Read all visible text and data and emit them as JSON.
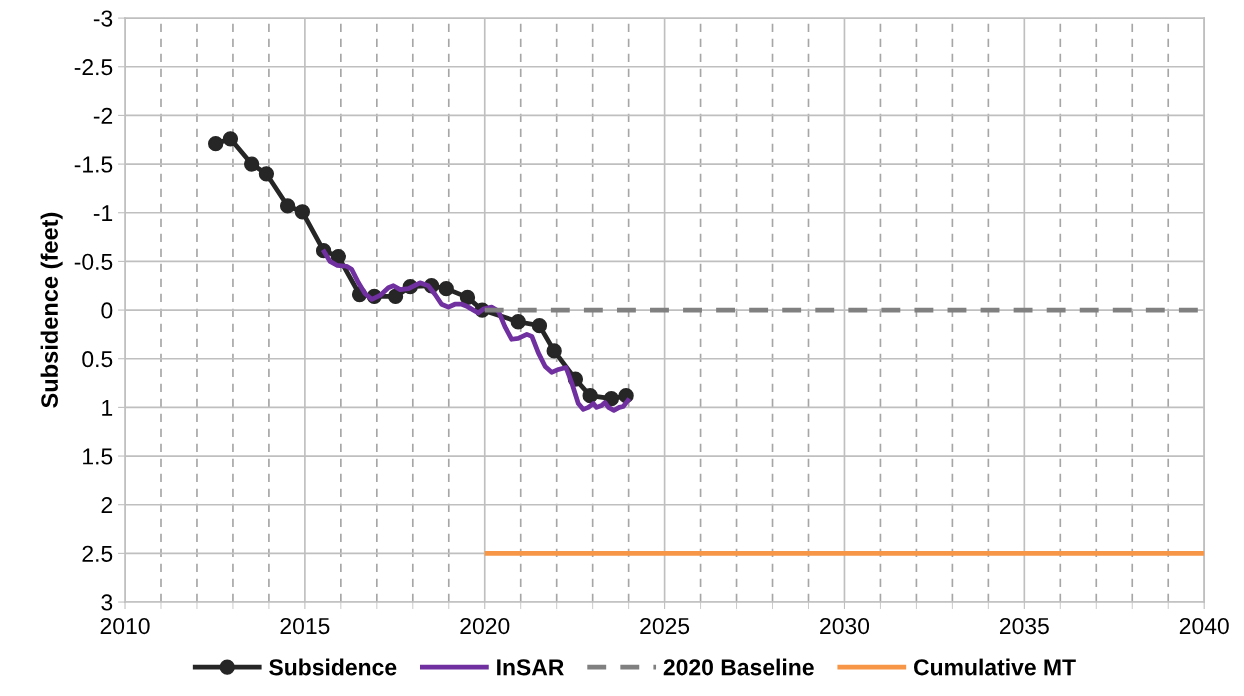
{
  "chart_data": {
    "type": "line",
    "ylabel": "Subsidence (feet)",
    "xlim": [
      2010,
      2040
    ],
    "xticks": [
      2010,
      {
        "value": 2011,
        "label": null
      },
      {
        "value": 2012,
        "label": null
      },
      {
        "value": 2013,
        "label": null
      },
      {
        "value": 2014,
        "label": null
      },
      2015,
      {
        "value": 2016,
        "label": null
      },
      {
        "value": 2017,
        "label": null
      },
      {
        "value": 2018,
        "label": null
      },
      {
        "value": 2019,
        "label": null
      },
      2020,
      {
        "value": 2021,
        "label": null
      },
      {
        "value": 2022,
        "label": null
      },
      {
        "value": 2023,
        "label": null
      },
      {
        "value": 2024,
        "label": null
      },
      2025,
      {
        "value": 2026,
        "label": null
      },
      {
        "value": 2027,
        "label": null
      },
      {
        "value": 2028,
        "label": null
      },
      {
        "value": 2029,
        "label": null
      },
      2030,
      {
        "value": 2031,
        "label": null
      },
      {
        "value": 2032,
        "label": null
      },
      {
        "value": 2033,
        "label": null
      },
      {
        "value": 2034,
        "label": null
      },
      2035,
      {
        "value": 2036,
        "label": null
      },
      {
        "value": 2037,
        "label": null
      },
      {
        "value": 2038,
        "label": null
      },
      {
        "value": 2039,
        "label": null
      },
      2040
    ],
    "ylim": [
      3,
      -3
    ],
    "yticks": [
      -3,
      -2.5,
      -2,
      -1.5,
      -1,
      -0.5,
      0,
      0.5,
      1,
      1.5,
      2,
      2.5,
      3
    ],
    "grid": true,
    "legend": "bottom",
    "series": [
      {
        "name": "Subsidence",
        "color": "#262626",
        "marker": "circle",
        "line_style": "solid",
        "x": [
          2012.52,
          2012.93,
          2013.52,
          2013.93,
          2014.52,
          2014.93,
          2015.52,
          2015.93,
          2016.52,
          2016.93,
          2017.52,
          2017.93,
          2018.52,
          2018.93,
          2019.52,
          2019.93,
          2020.93,
          2021.52,
          2021.93,
          2022.52,
          2022.93,
          2023.52,
          2023.93
        ],
        "values": [
          -1.71,
          -1.76,
          -1.5,
          -1.4,
          -1.07,
          -1.01,
          -0.61,
          -0.55,
          -0.16,
          -0.14,
          -0.14,
          -0.24,
          -0.25,
          -0.22,
          -0.13,
          0.0,
          0.12,
          0.16,
          0.42,
          0.71,
          0.88,
          0.91,
          0.88
        ]
      },
      {
        "name": "InSAR",
        "color": "#7030a0",
        "marker": "none",
        "line_style": "solid",
        "x": [
          2015.5,
          2015.7,
          2015.89,
          2016.16,
          2016.3,
          2016.49,
          2016.67,
          2016.86,
          2017.09,
          2017.32,
          2017.46,
          2017.65,
          2017.88,
          2018.2,
          2018.43,
          2018.62,
          2018.8,
          2018.99,
          2019.17,
          2019.36,
          2019.5,
          2019.59,
          2019.82,
          2019.96,
          2020.19,
          2020.38,
          2020.56,
          2020.75,
          2020.93,
          2021.17,
          2021.31,
          2021.49,
          2021.68,
          2021.86,
          2022.05,
          2022.26,
          2022.42,
          2022.6,
          2022.74,
          2022.88,
          2023.02,
          2023.11,
          2023.25,
          2023.34,
          2023.44,
          2023.59,
          2023.74,
          2023.85,
          2024.02
        ],
        "values": [
          -0.62,
          -0.5,
          -0.46,
          -0.45,
          -0.42,
          -0.28,
          -0.17,
          -0.11,
          -0.15,
          -0.23,
          -0.25,
          -0.21,
          -0.22,
          -0.28,
          -0.25,
          -0.16,
          -0.06,
          -0.03,
          -0.06,
          -0.06,
          -0.04,
          -0.02,
          0.03,
          -0.01,
          -0.03,
          0.01,
          0.17,
          0.3,
          0.29,
          0.25,
          0.27,
          0.44,
          0.58,
          0.64,
          0.61,
          0.59,
          0.75,
          0.96,
          1.02,
          1.0,
          0.96,
          1.0,
          0.98,
          0.95,
          1.0,
          1.03,
          1.0,
          0.99,
          0.91
        ]
      },
      {
        "name": "2020 Baseline",
        "color": "#808080",
        "marker": "none",
        "line_style": "dashed",
        "x": [
          2020,
          2040
        ],
        "values": [
          0,
          0
        ]
      },
      {
        "name": "Cumulative MT",
        "color": "#f79646",
        "marker": "none",
        "line_style": "solid",
        "x": [
          2020,
          2040
        ],
        "values": [
          2.5,
          2.5
        ]
      }
    ]
  }
}
